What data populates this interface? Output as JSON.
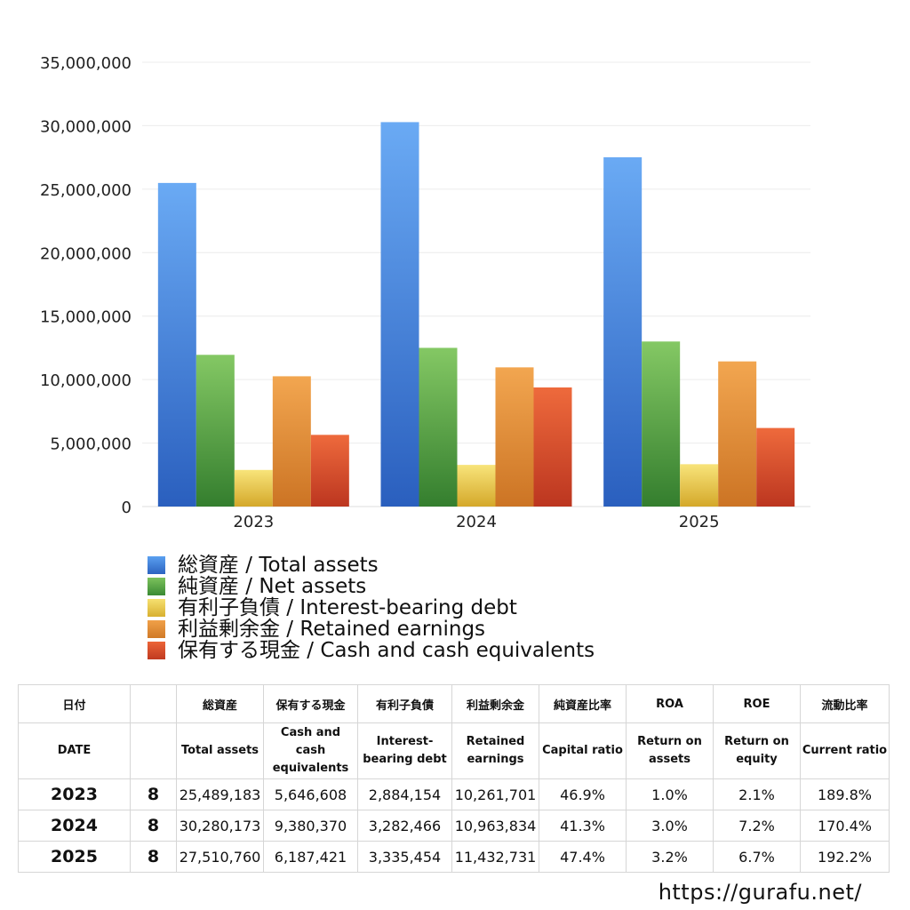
{
  "chart_data": {
    "type": "bar",
    "categories": [
      "2023",
      "2024",
      "2025"
    ],
    "series": [
      {
        "name": "総資産 / Total assets",
        "values": [
          25489183,
          30280173,
          27510760
        ],
        "color": "#3a7fdc"
      },
      {
        "name": "純資産 / Net assets",
        "values": [
          11950000,
          12500000,
          13000000
        ],
        "color": "#4a9e40"
      },
      {
        "name": "有利子負債 / Interest-bearing debt",
        "values": [
          2884154,
          3282466,
          3335454
        ],
        "color": "#e8c840"
      },
      {
        "name": "利益剰余金 / Retained earnings",
        "values": [
          10261701,
          10963834,
          11432731
        ],
        "color": "#e08a35"
      },
      {
        "name": "保有する現金 /  Cash and cash equivalents",
        "values": [
          5646608,
          9380370,
          6187421
        ],
        "color": "#d84a2a"
      }
    ],
    "yticks": [
      "0",
      "5,000,000",
      "10,000,000",
      "15,000,000",
      "20,000,000",
      "25,000,000",
      "30,000,000",
      "35,000,000"
    ],
    "ylim": [
      0,
      35000000
    ],
    "grid": true,
    "legend": "bottom-left"
  },
  "table": {
    "header_jp": [
      "日付",
      "",
      "総資産",
      "保有する現金",
      "有利子負債",
      "利益剰余金",
      "純資産比率",
      "ROA",
      "ROE",
      "流動比率"
    ],
    "header_en": [
      "DATE",
      "",
      "Total assets",
      "Cash and cash equivalents",
      "Interest-bearing debt",
      "Retained earnings",
      "Capital ratio",
      "Return on assets",
      "Return on equity",
      "Current ratio"
    ],
    "rows": [
      [
        "2023",
        "8",
        "25,489,183",
        "5,646,608",
        "2,884,154",
        "10,261,701",
        "46.9%",
        "1.0%",
        "2.1%",
        "189.8%"
      ],
      [
        "2024",
        "8",
        "30,280,173",
        "9,380,370",
        "3,282,466",
        "10,963,834",
        "41.3%",
        "3.0%",
        "7.2%",
        "170.4%"
      ],
      [
        "2025",
        "8",
        "27,510,760",
        "6,187,421",
        "3,335,454",
        "11,432,731",
        "47.4%",
        "3.2%",
        "6.7%",
        "192.2%"
      ]
    ]
  },
  "footer": {
    "url": "https://gurafu.net/"
  }
}
